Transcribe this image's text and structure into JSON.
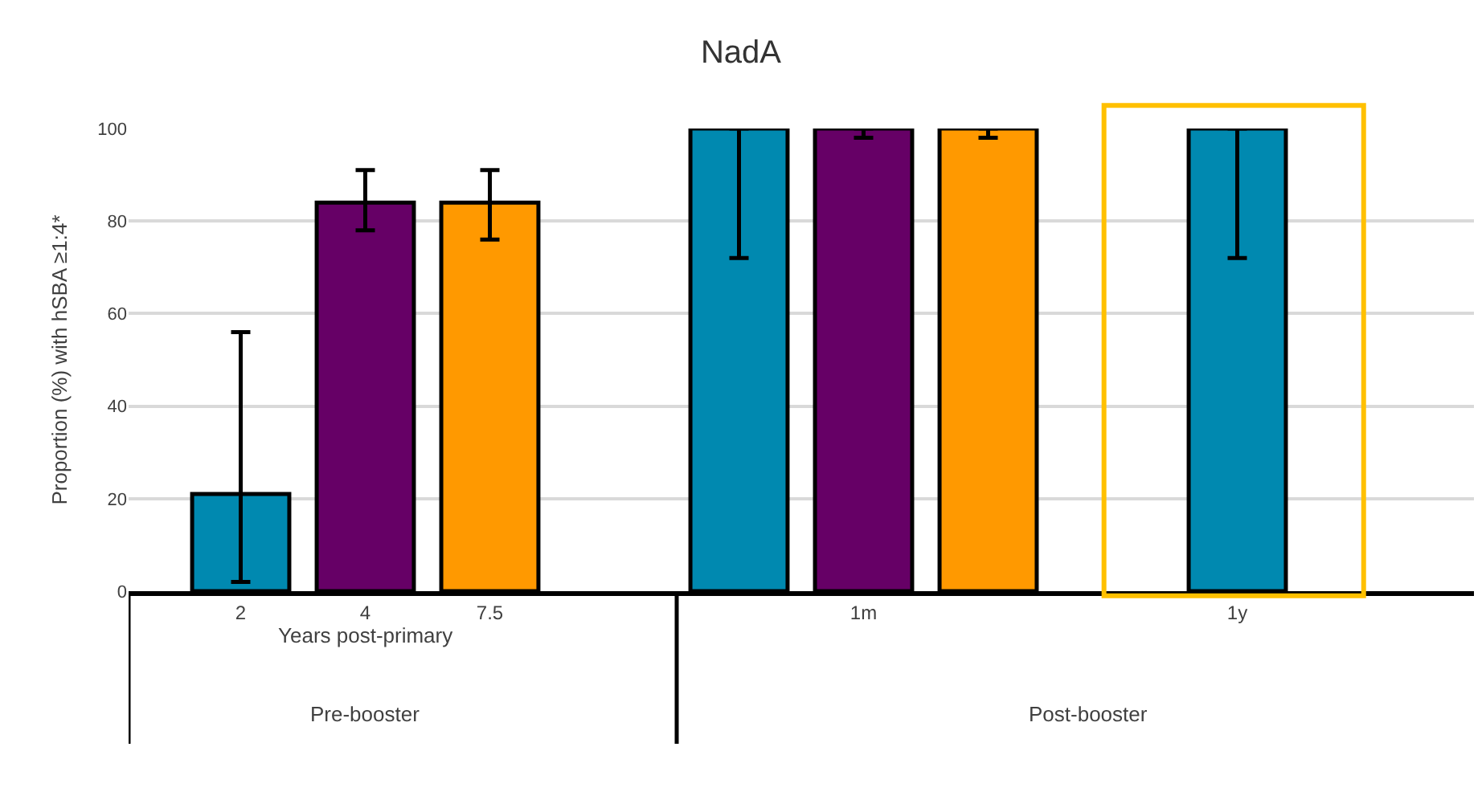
{
  "chart_data": {
    "type": "bar",
    "title": "NadA",
    "ylabel": "Proportion (%) with hSBA ≥1:4*",
    "categories": [
      "2",
      "4",
      "7.5",
      null,
      null,
      "1m",
      null,
      null,
      "1y"
    ],
    "values": [
      21,
      84,
      84,
      null,
      100,
      100,
      100,
      null,
      100
    ],
    "colors": [
      "#0089b0",
      "#660066",
      "#ff9900",
      "#ffffff",
      "#0089b0",
      "#660066",
      "#ff9900",
      "#ffffff",
      "#0089b0"
    ],
    "errors": [
      [
        2,
        56
      ],
      [
        78,
        91
      ],
      [
        76,
        91
      ],
      null,
      [
        72,
        100
      ],
      [
        98,
        100
      ],
      [
        98,
        100
      ],
      null,
      [
        72,
        100
      ]
    ],
    "ylim": [
      0,
      100
    ],
    "yticks": [
      0,
      20,
      40,
      60,
      80,
      100
    ],
    "grid": "y",
    "annotations": [
      "Years post-primary",
      "Pre-booster",
      "Post-booster"
    ]
  }
}
